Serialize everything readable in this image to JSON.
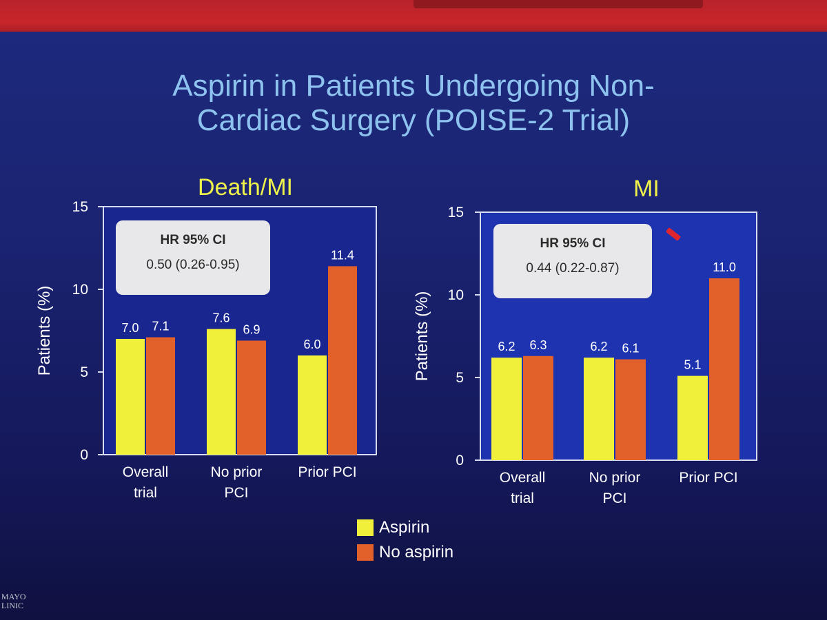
{
  "slide": {
    "title_line1": "Aspirin in Patients Undergoing Non-",
    "title_line2": "Cardiac Surgery (POISE-2 Trial)",
    "footer_logo_line1": "MAYO",
    "footer_logo_line2": "LINIC"
  },
  "colors": {
    "aspirin": "#f0ef3a",
    "no_aspirin": "#e2602a",
    "title": "#8fc3ef",
    "panel_title": "#eef24a",
    "plot_bg_left": "#1a2690",
    "plot_bg_right": "#1e33b0",
    "axis": "#d8dcf0"
  },
  "legend": {
    "items": [
      {
        "label": "Aspirin",
        "color": "#f0ef3a"
      },
      {
        "label": "No aspirin",
        "color": "#e2602a"
      }
    ]
  },
  "chart_data": [
    {
      "type": "bar",
      "title": "Death/MI",
      "ylabel": "Patients (%)",
      "ylim": [
        0,
        15
      ],
      "yticks": [
        0,
        5,
        10,
        15
      ],
      "categories": [
        [
          "Overall",
          "trial"
        ],
        [
          "No prior",
          "PCI"
        ],
        [
          "Prior PCI"
        ]
      ],
      "series": [
        {
          "name": "Aspirin",
          "values": [
            7.0,
            7.6,
            6.0
          ],
          "labels": [
            "7.0",
            "7.6",
            "6.0"
          ]
        },
        {
          "name": "No aspirin",
          "values": [
            7.1,
            6.9,
            11.4
          ],
          "labels": [
            "7.1",
            "6.9",
            "11.4"
          ]
        }
      ],
      "annotation": {
        "header": "HR 95% CI",
        "value": "0.50 (0.26-0.95)"
      }
    },
    {
      "type": "bar",
      "title": "MI",
      "ylabel": "Patients (%)",
      "ylim": [
        0,
        15
      ],
      "yticks": [
        0,
        5,
        10,
        15
      ],
      "categories": [
        [
          "Overall",
          "trial"
        ],
        [
          "No prior",
          "PCI"
        ],
        [
          "Prior PCI"
        ]
      ],
      "series": [
        {
          "name": "Aspirin",
          "values": [
            6.2,
            6.2,
            5.1
          ],
          "labels": [
            "6.2",
            "6.2",
            "5.1"
          ]
        },
        {
          "name": "No aspirin",
          "values": [
            6.3,
            6.1,
            11.0
          ],
          "labels": [
            "6.3",
            "6.1",
            "11.0"
          ]
        }
      ],
      "annotation": {
        "header": "HR 95% CI",
        "value": "0.44 (0.22-0.87)"
      }
    }
  ]
}
